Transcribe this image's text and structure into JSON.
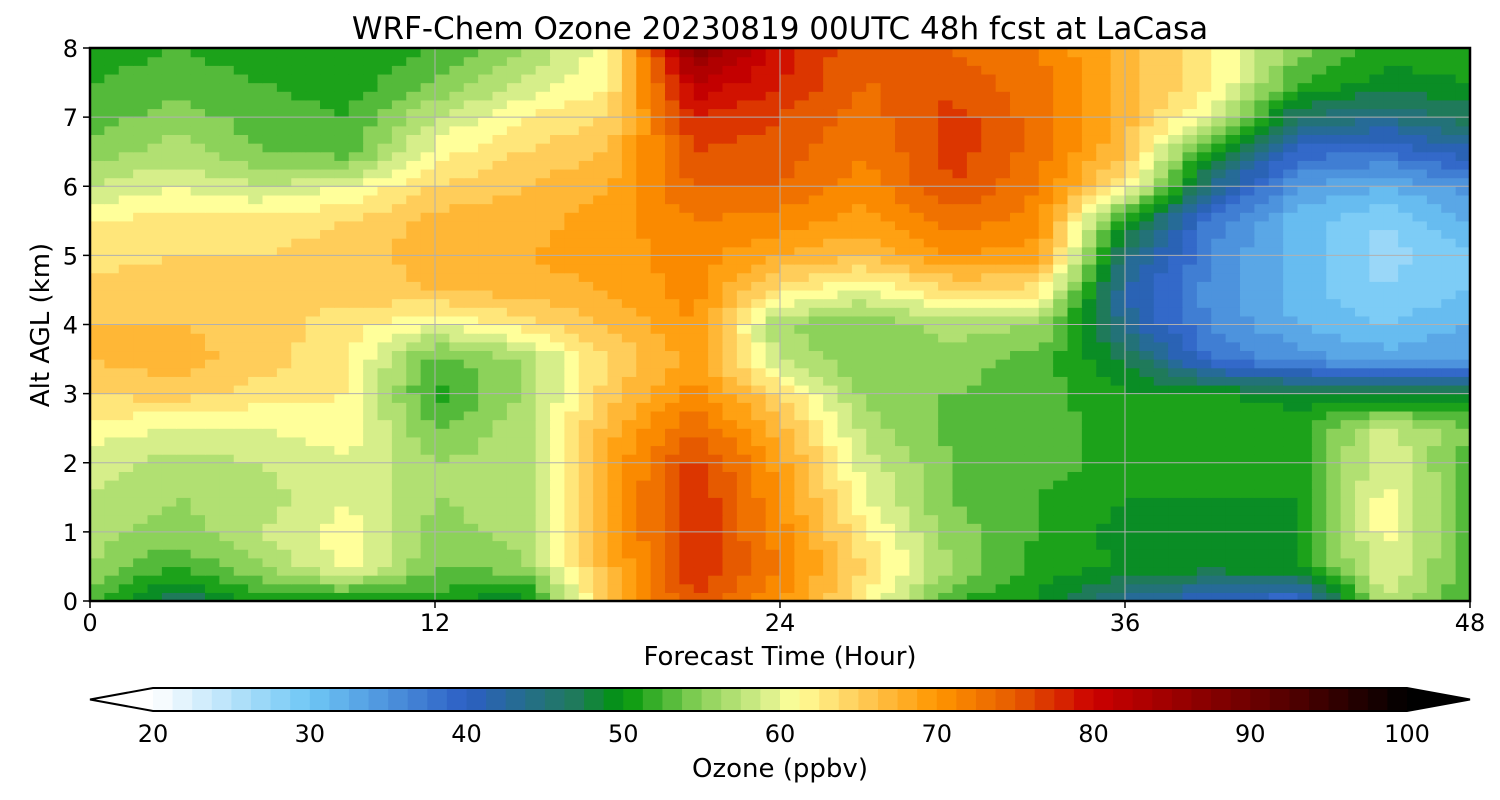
{
  "chart_data": {
    "type": "heatmap",
    "title": "WRF-Chem Ozone  20230819 00UTC 48h fcst at LaCasa",
    "xlabel": "Forecast Time (Hour)",
    "ylabel": "Alt AGL (km)",
    "xlim": [
      0,
      48
    ],
    "ylim": [
      0,
      8
    ],
    "xticks": [
      0,
      12,
      24,
      36,
      48
    ],
    "yticks": [
      0,
      1,
      2,
      3,
      4,
      5,
      6,
      7,
      8
    ],
    "grid": true,
    "x": [
      0,
      3,
      6,
      9,
      12,
      15,
      18,
      21,
      24,
      27,
      30,
      33,
      36,
      39,
      42,
      45,
      48
    ],
    "y": [
      0,
      0.5,
      1,
      1.5,
      2,
      2.5,
      3,
      3.5,
      4,
      4.5,
      5,
      5.5,
      6,
      6.5,
      7,
      7.5,
      8
    ],
    "z_rows_by_altitude": [
      [
        52,
        46,
        51,
        50,
        51,
        48,
        66,
        76,
        70,
        62,
        52,
        50,
        43,
        40,
        38,
        58,
        52
      ],
      [
        56,
        52,
        56,
        61,
        54,
        55,
        67,
        78,
        72,
        64,
        56,
        51,
        50,
        49,
        50,
        60,
        53
      ],
      [
        57,
        55,
        58,
        61,
        55,
        57,
        68,
        78,
        71,
        62,
        55,
        52,
        49,
        49,
        50,
        61,
        53
      ],
      [
        58,
        56,
        57,
        60,
        56,
        57,
        68,
        78,
        70,
        60,
        54,
        52,
        50,
        50,
        50,
        61,
        53
      ],
      [
        59,
        57,
        58,
        60,
        56,
        57,
        68,
        77,
        69,
        59,
        54,
        53,
        51,
        52,
        51,
        60,
        53
      ],
      [
        61,
        60,
        60,
        61,
        54,
        57,
        67,
        74,
        67,
        57,
        53,
        53,
        51,
        52,
        51,
        59,
        54
      ],
      [
        64,
        65,
        63,
        62,
        51,
        56,
        65,
        71,
        64,
        55,
        54,
        53,
        50,
        50,
        49,
        48,
        48
      ],
      [
        66,
        67,
        65,
        62,
        53,
        56,
        64,
        69,
        58,
        54,
        55,
        53,
        48,
        38,
        35,
        33,
        34
      ],
      [
        66,
        66,
        65,
        63,
        60,
        63,
        66,
        70,
        56,
        54,
        57,
        56,
        43,
        36,
        32,
        30,
        32
      ],
      [
        65,
        65,
        64,
        65,
        66,
        67,
        68,
        71,
        63,
        60,
        64,
        63,
        42,
        35,
        31,
        28,
        30
      ],
      [
        63,
        64,
        64,
        65,
        67,
        68,
        69,
        71,
        68,
        66,
        70,
        69,
        45,
        36,
        31,
        27,
        30
      ],
      [
        62,
        63,
        63,
        64,
        67,
        67,
        69,
        72,
        71,
        69,
        73,
        71,
        50,
        37,
        31,
        28,
        32
      ],
      [
        58,
        60,
        58,
        60,
        64,
        66,
        68,
        74,
        74,
        71,
        76,
        72,
        62,
        44,
        34,
        32,
        35
      ],
      [
        55,
        57,
        54,
        53,
        61,
        64,
        66,
        76,
        75,
        72,
        77,
        73,
        66,
        50,
        39,
        38,
        41
      ],
      [
        53,
        55,
        53,
        52,
        58,
        62,
        64,
        78,
        76,
        73,
        77,
        73,
        67,
        59,
        46,
        44,
        47
      ],
      [
        52,
        53,
        52,
        51,
        54,
        58,
        62,
        82,
        78,
        74,
        75,
        73,
        67,
        63,
        52,
        49,
        50
      ],
      [
        51,
        52,
        51,
        50,
        52,
        56,
        61,
        88,
        79,
        74,
        74,
        72,
        67,
        62,
        55,
        51,
        51
      ]
    ],
    "colorbar": {
      "label": "Ozone  (ppbv)",
      "min": 20,
      "max": 100,
      "ticks": [
        20,
        30,
        40,
        50,
        60,
        70,
        80,
        90,
        100
      ],
      "extend": "both",
      "stops": [
        {
          "v": 20,
          "color": "#ffffff"
        },
        {
          "v": 30,
          "color": "#6ec6f5"
        },
        {
          "v": 40,
          "color": "#2c5fc4"
        },
        {
          "v": 47,
          "color": "#1f7a5a"
        },
        {
          "v": 50,
          "color": "#00960a"
        },
        {
          "v": 55,
          "color": "#8cd25a"
        },
        {
          "v": 59,
          "color": "#d6ee8a"
        },
        {
          "v": 61,
          "color": "#ffff9a"
        },
        {
          "v": 65,
          "color": "#ffcd5a"
        },
        {
          "v": 70,
          "color": "#ff9600"
        },
        {
          "v": 75,
          "color": "#e65a00"
        },
        {
          "v": 80,
          "color": "#cc0000"
        },
        {
          "v": 90,
          "color": "#6e0000"
        },
        {
          "v": 100,
          "color": "#000000"
        }
      ]
    }
  }
}
